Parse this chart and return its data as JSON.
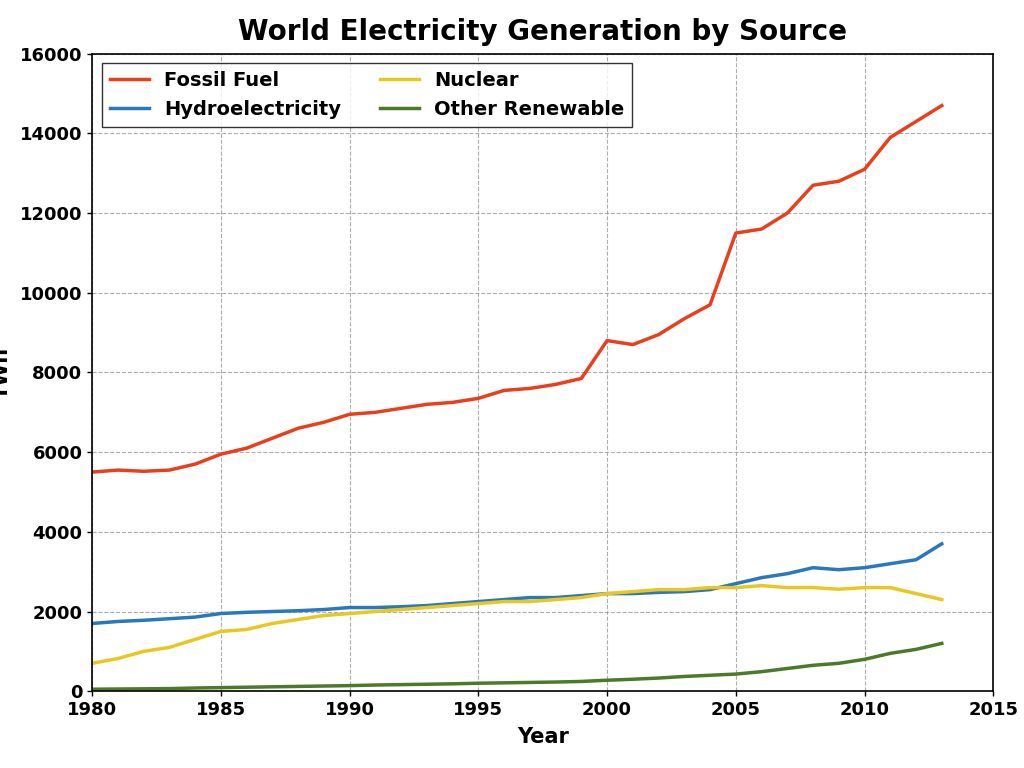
{
  "title": "World Electricity Generation by Source",
  "xlabel": "Year",
  "ylabel": "TWh",
  "xlim": [
    1980,
    2015
  ],
  "ylim": [
    0,
    16000
  ],
  "yticks": [
    0,
    2000,
    4000,
    6000,
    8000,
    10000,
    12000,
    14000,
    16000
  ],
  "xticks": [
    1980,
    1985,
    1990,
    1995,
    2000,
    2005,
    2010,
    2015
  ],
  "background_color": "#ffffff",
  "grid_color": "#999999",
  "series_order": [
    "Fossil Fuel",
    "Hydroelectricity",
    "Nuclear",
    "Other Renewable"
  ],
  "legend_order": [
    "Fossil Fuel",
    "Hydroelectricity",
    "Nuclear",
    "Other Renewable"
  ],
  "series": {
    "Fossil Fuel": {
      "color": "#e8401c",
      "years": [
        1980,
        1981,
        1982,
        1983,
        1984,
        1985,
        1986,
        1987,
        1988,
        1989,
        1990,
        1991,
        1992,
        1993,
        1994,
        1995,
        1996,
        1997,
        1998,
        1999,
        2000,
        2001,
        2002,
        2003,
        2004,
        2005,
        2006,
        2007,
        2008,
        2009,
        2010,
        2011,
        2012,
        2013
      ],
      "values": [
        5500,
        5550,
        5520,
        5550,
        5700,
        5950,
        6100,
        6350,
        6600,
        6750,
        6950,
        7000,
        7100,
        7200,
        7250,
        7350,
        7550,
        7600,
        7700,
        7850,
        8800,
        8700,
        8950,
        9350,
        9700,
        11500,
        11600,
        12000,
        12700,
        12800,
        13100,
        13900,
        14300,
        14700
      ]
    },
    "Hydroelectricity": {
      "color": "#2878be",
      "years": [
        1980,
        1981,
        1982,
        1983,
        1984,
        1985,
        1986,
        1987,
        1988,
        1989,
        1990,
        1991,
        1992,
        1993,
        1994,
        1995,
        1996,
        1997,
        1998,
        1999,
        2000,
        2001,
        2002,
        2003,
        2004,
        2005,
        2006,
        2007,
        2008,
        2009,
        2010,
        2011,
        2012,
        2013
      ],
      "values": [
        1700,
        1750,
        1780,
        1820,
        1860,
        1950,
        1980,
        2000,
        2020,
        2050,
        2100,
        2100,
        2120,
        2150,
        2200,
        2250,
        2300,
        2350,
        2350,
        2400,
        2450,
        2450,
        2480,
        2500,
        2550,
        2700,
        2850,
        2950,
        3100,
        3050,
        3100,
        3200,
        3300,
        3700
      ]
    },
    "Nuclear": {
      "color": "#e8c820",
      "years": [
        1980,
        1981,
        1982,
        1983,
        1984,
        1985,
        1986,
        1987,
        1988,
        1989,
        1990,
        1991,
        1992,
        1993,
        1994,
        1995,
        1996,
        1997,
        1998,
        1999,
        2000,
        2001,
        2002,
        2003,
        2004,
        2005,
        2006,
        2007,
        2008,
        2009,
        2010,
        2011,
        2012,
        2013
      ],
      "values": [
        700,
        820,
        1000,
        1100,
        1300,
        1500,
        1550,
        1700,
        1800,
        1900,
        1950,
        2000,
        2050,
        2100,
        2150,
        2200,
        2250,
        2250,
        2300,
        2350,
        2450,
        2500,
        2550,
        2550,
        2600,
        2600,
        2650,
        2600,
        2600,
        2560,
        2600,
        2600,
        2450,
        2300
      ]
    },
    "Other Renewable": {
      "color": "#4c7a28",
      "years": [
        1980,
        1981,
        1982,
        1983,
        1984,
        1985,
        1986,
        1987,
        1988,
        1989,
        1990,
        1991,
        1992,
        1993,
        1994,
        1995,
        1996,
        1997,
        1998,
        1999,
        2000,
        2001,
        2002,
        2003,
        2004,
        2005,
        2006,
        2007,
        2008,
        2009,
        2010,
        2011,
        2012,
        2013
      ],
      "values": [
        50,
        55,
        60,
        65,
        80,
        90,
        100,
        110,
        120,
        130,
        140,
        155,
        165,
        175,
        185,
        200,
        210,
        220,
        230,
        245,
        275,
        300,
        330,
        370,
        400,
        430,
        490,
        570,
        650,
        700,
        800,
        950,
        1050,
        1200
      ]
    }
  },
  "title_fontsize": 20,
  "axis_label_fontsize": 15,
  "tick_fontsize": 13,
  "legend_fontsize": 14,
  "linewidth": 2.5
}
